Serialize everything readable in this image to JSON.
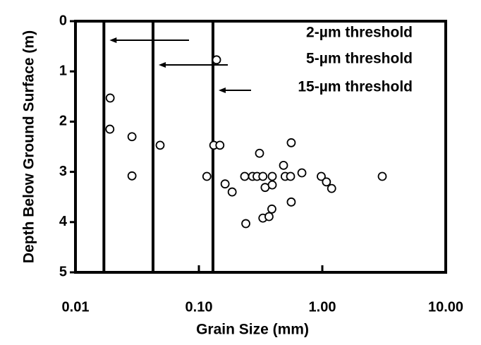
{
  "chart_data": {
    "type": "scatter",
    "xlabel": "Grain Size (mm)",
    "ylabel": "Depth Below Ground Surface (m)",
    "xscale": "log",
    "y_inverted": true,
    "color": "#000000",
    "xlim": [
      0.01,
      10
    ],
    "ylim": [
      0,
      5
    ],
    "xticks": [
      {
        "value": 0.01,
        "label": "0.01"
      },
      {
        "value": 0.1,
        "label": "0.10"
      },
      {
        "value": 1,
        "label": "1.00"
      },
      {
        "value": 10,
        "label": "10.00"
      }
    ],
    "yticks": [
      0,
      1,
      2,
      3,
      4,
      5
    ],
    "thresholds": [
      {
        "value": 0.017,
        "label": "2-µm threshold"
      },
      {
        "value": 0.0425,
        "label": "5-µm threshold"
      },
      {
        "value": 0.13,
        "label": "15-µm threshold"
      }
    ],
    "x": [
      0.139,
      0.0191,
      0.019,
      0.0287,
      0.0485,
      0.0287,
      0.132,
      0.148,
      0.116,
      0.163,
      0.186,
      0.235,
      0.272,
      0.296,
      0.31,
      0.33,
      0.344,
      0.393,
      0.393,
      0.39,
      0.33,
      0.37,
      0.24,
      0.485,
      0.5,
      0.553,
      0.56,
      0.56,
      0.683,
      0.98,
      1.08,
      1.19,
      3.06
    ],
    "y": [
      0.77,
      1.53,
      2.15,
      2.3,
      2.47,
      3.08,
      2.47,
      2.47,
      3.09,
      3.24,
      3.4,
      3.09,
      3.09,
      3.09,
      2.63,
      3.09,
      3.31,
      3.09,
      3.26,
      3.74,
      3.92,
      3.89,
      4.03,
      2.87,
      3.09,
      3.09,
      2.42,
      3.6,
      3.02,
      3.09,
      3.2,
      3.33,
      3.09
    ]
  }
}
